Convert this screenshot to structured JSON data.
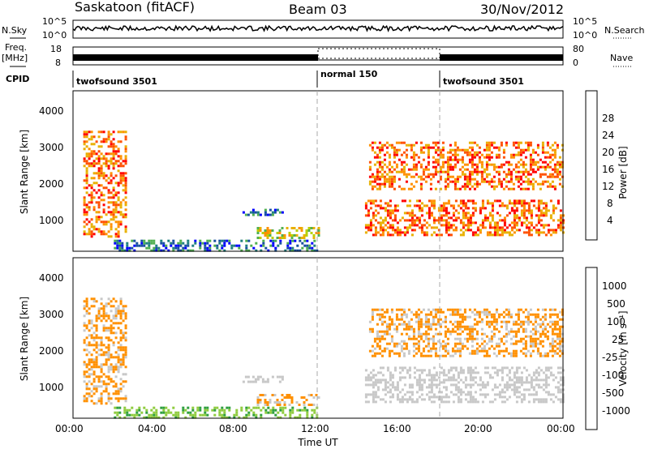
{
  "header": {
    "station": "Saskatoon (fitACF)",
    "beam": "Beam 03",
    "date": "30/Nov/2012"
  },
  "side_labels": {
    "nsky": "N.Sky",
    "freq": "Freq.",
    "freq_unit": "[MHz]",
    "cpid": "CPID",
    "nsearch": "N.Search",
    "nave": "Nave"
  },
  "noise_axis": {
    "left_ticks": [
      "10^5",
      "10^0"
    ],
    "right_ticks": [
      "10^5",
      "10^0"
    ]
  },
  "freq_axis": {
    "left_ticks": [
      "18",
      "8"
    ],
    "right_ticks": [
      "80",
      "0"
    ]
  },
  "cpid_segments": [
    {
      "label": "twofsound 3501",
      "start_hour": 0
    },
    {
      "label": "normal 150",
      "start_hour": 12
    },
    {
      "label": "twofsound 3501",
      "start_hour": 18
    }
  ],
  "time_axis": {
    "label": "Time UT",
    "ticks": [
      "00:00",
      "04:00",
      "08:00",
      "12:00",
      "16:00",
      "20:00",
      "00:00"
    ]
  },
  "chart_data": [
    {
      "type": "heatmap",
      "quantity": "Power",
      "ylabel": "Slant Range [km]",
      "yticks": [
        "4000",
        "3000",
        "2000",
        "1000"
      ],
      "ylim": [
        180,
        4600
      ],
      "xlim_hours": [
        0,
        24
      ],
      "colorbar": {
        "label": "Power [dB]",
        "ticks": [
          "28",
          "24",
          "20",
          "16",
          "12",
          "8",
          "4"
        ],
        "colors": [
          "#ff0000",
          "#ff5000",
          "#ff9000",
          "#e8b000",
          "#b8d000",
          "#50b050",
          "#208080",
          "#1850a0",
          "#0000ff"
        ]
      },
      "regions": [
        {
          "t": [
            0.5,
            2.6
          ],
          "r": [
            600,
            3500
          ],
          "level": "high"
        },
        {
          "t": [
            2.0,
            12.0
          ],
          "r": [
            200,
            500
          ],
          "level": "low"
        },
        {
          "t": [
            8.3,
            10.3
          ],
          "r": [
            1150,
            1350
          ],
          "level": "low"
        },
        {
          "t": [
            9.0,
            12.0
          ],
          "r": [
            550,
            850
          ],
          "level": "mid"
        },
        {
          "t": [
            14.3,
            24.0
          ],
          "r": [
            600,
            1600
          ],
          "level": "high"
        },
        {
          "t": [
            14.5,
            24.0
          ],
          "r": [
            1900,
            3200
          ],
          "level": "high"
        }
      ]
    },
    {
      "type": "heatmap",
      "quantity": "Velocity",
      "ylabel": "Slant Range [km]",
      "yticks": [
        "4000",
        "3000",
        "2000",
        "1000"
      ],
      "ylim": [
        180,
        4600
      ],
      "xlim_hours": [
        0,
        24
      ],
      "colorbar": {
        "label": "Velocity [m s⁻¹]",
        "ticks": [
          "1000",
          "500",
          "100",
          "25",
          "-25",
          "-100",
          "-500",
          "-1000"
        ],
        "colors": [
          "#1a3fa0",
          "#2060b0",
          "#30a040",
          "#90cc40",
          "#c8c8c8",
          "#c8c8c8",
          "#ff9000",
          "#ff5000",
          "#ff0000"
        ]
      },
      "regions": [
        {
          "t": [
            0.5,
            2.6
          ],
          "r": [
            600,
            3500
          ],
          "level": "-100"
        },
        {
          "t": [
            2.0,
            12.0
          ],
          "r": [
            200,
            500
          ],
          "level": "100"
        },
        {
          "t": [
            8.3,
            10.3
          ],
          "r": [
            1150,
            1350
          ],
          "level": "-25"
        },
        {
          "t": [
            9.0,
            12.0
          ],
          "r": [
            550,
            850
          ],
          "level": "-100"
        },
        {
          "t": [
            14.3,
            24.0
          ],
          "r": [
            600,
            1600
          ],
          "level": "-25"
        },
        {
          "t": [
            14.5,
            24.0
          ],
          "r": [
            1900,
            3200
          ],
          "level": "-100"
        }
      ]
    }
  ]
}
